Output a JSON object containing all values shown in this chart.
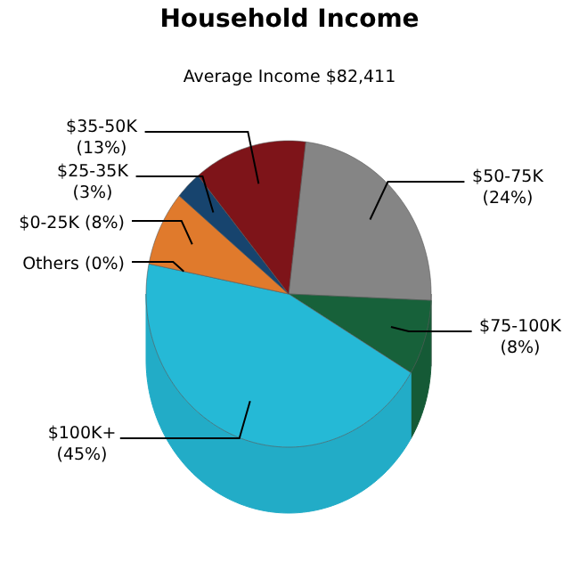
{
  "chart_data": {
    "type": "pie",
    "title": "Household Income",
    "subtitle": "Average Income  $82,411",
    "categories": [
      "$50-75K",
      "$75-100K",
      "$100K+",
      "Others",
      "$0-25K",
      "$25-35K",
      "$35-50K"
    ],
    "values": [
      24,
      8,
      45,
      0,
      8,
      3,
      13
    ],
    "value_labels": [
      "(24%)",
      "(8%)",
      "(45%)",
      "(0%)",
      "(8%)",
      "(3%)",
      "(13%)"
    ],
    "colors": [
      "#858585",
      "#17613a",
      "#25b9d6",
      "#a8c8e0",
      "#e07a2c",
      "#17446e",
      "#7e1419"
    ]
  }
}
